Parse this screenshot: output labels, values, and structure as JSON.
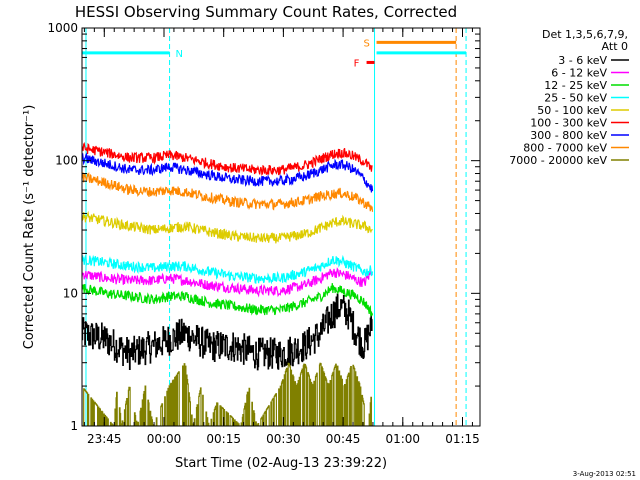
{
  "chart_data": {
    "type": "line",
    "title": "HESSI Observing Summary Count Rates, Corrected",
    "xlabel": "Start Time (02-Aug-13 23:39:22)",
    "ylabel": "Corrected Count Rate (s⁻¹ detector⁻¹)",
    "x_unit": "minutes since 23:39:22",
    "xlim": [
      0,
      100
    ],
    "ylim": [
      1,
      1000
    ],
    "y_scale": "log",
    "x_ticks": [
      {
        "t": 5.6,
        "label": "23:45"
      },
      {
        "t": 20.6,
        "label": "00:00"
      },
      {
        "t": 35.6,
        "label": "00:15"
      },
      {
        "t": 50.6,
        "label": "00:30"
      },
      {
        "t": 65.6,
        "label": "00:45"
      },
      {
        "t": 80.6,
        "label": "01:00"
      },
      {
        "t": 95.6,
        "label": "01:15"
      }
    ],
    "y_ticks": [
      {
        "v": 1,
        "label": "1"
      },
      {
        "v": 10,
        "label": "10"
      },
      {
        "v": 100,
        "label": "100"
      },
      {
        "v": 1000,
        "label": "1000"
      }
    ],
    "legend": {
      "title_lines": [
        "Det 1,3,5,6,7,9,",
        "Att 0"
      ],
      "placement": "right"
    },
    "series": [
      {
        "name": "3 - 6 keV",
        "color": "#000000",
        "x": [
          0,
          6,
          12,
          18,
          22,
          26,
          32,
          38,
          44,
          50,
          56,
          60,
          63,
          65,
          67,
          69,
          71,
          73
        ],
        "y": [
          5,
          4.5,
          3.5,
          4,
          4.5,
          5,
          4,
          4,
          3.5,
          3.5,
          4,
          5,
          7,
          8,
          7,
          5,
          4,
          6
        ]
      },
      {
        "name": "6 - 12 keV",
        "color": "#ff00ff",
        "x": [
          0,
          6,
          12,
          18,
          22,
          26,
          32,
          38,
          44,
          50,
          56,
          60,
          63,
          65,
          67,
          69,
          71,
          73
        ],
        "y": [
          14,
          13,
          12.5,
          12.5,
          13,
          12.5,
          11.5,
          11,
          10.5,
          10.5,
          11.5,
          13,
          14.5,
          14,
          13.5,
          12.5,
          12,
          15
        ]
      },
      {
        "name": "12 - 25 keV",
        "color": "#00dd00",
        "x": [
          0,
          6,
          12,
          18,
          22,
          26,
          32,
          38,
          44,
          50,
          56,
          60,
          63,
          65,
          67,
          69,
          71,
          73
        ],
        "y": [
          11,
          10,
          9.5,
          9,
          9.5,
          9.5,
          8.5,
          8,
          7.5,
          7.5,
          8.5,
          9.5,
          11,
          10.5,
          10,
          9.5,
          8.5,
          7
        ]
      },
      {
        "name": "25 - 50 keV",
        "color": "#00ffff",
        "x": [
          0,
          6,
          12,
          18,
          22,
          26,
          32,
          38,
          44,
          50,
          56,
          60,
          63,
          65,
          67,
          69,
          71,
          73
        ],
        "y": [
          18,
          17,
          16,
          15.5,
          16,
          16,
          14.5,
          13.5,
          13,
          13,
          14.5,
          16,
          18,
          17.5,
          16.5,
          15.5,
          14.5,
          15
        ]
      },
      {
        "name": "50 - 100 keV",
        "color": "#ddcc00",
        "x": [
          0,
          6,
          12,
          18,
          22,
          26,
          32,
          38,
          44,
          50,
          56,
          60,
          63,
          65,
          67,
          69,
          71,
          73
        ],
        "y": [
          38,
          35,
          32,
          30,
          31,
          32,
          29,
          27,
          26,
          26,
          28,
          31,
          34,
          35,
          34,
          33,
          32,
          30
        ]
      },
      {
        "name": "100 - 300 keV",
        "color": "#ff0000",
        "x": [
          0,
          6,
          12,
          18,
          22,
          26,
          32,
          38,
          44,
          50,
          56,
          60,
          63,
          65,
          67,
          69,
          71,
          73
        ],
        "y": [
          125,
          115,
          105,
          105,
          110,
          105,
          95,
          88,
          85,
          85,
          92,
          103,
          112,
          115,
          112,
          105,
          98,
          85
        ]
      },
      {
        "name": "300 - 800 keV",
        "color": "#0000ff",
        "x": [
          0,
          6,
          12,
          18,
          22,
          26,
          32,
          38,
          44,
          50,
          56,
          60,
          63,
          65,
          67,
          69,
          71,
          73
        ],
        "y": [
          105,
          95,
          85,
          85,
          90,
          85,
          78,
          72,
          70,
          70,
          76,
          85,
          92,
          94,
          90,
          82,
          72,
          60
        ]
      },
      {
        "name": "800 - 7000 keV",
        "color": "#ff8800",
        "x": [
          0,
          6,
          12,
          18,
          22,
          26,
          32,
          38,
          44,
          50,
          56,
          60,
          63,
          65,
          67,
          69,
          71,
          73
        ],
        "y": [
          75,
          68,
          60,
          58,
          60,
          58,
          53,
          49,
          47,
          47,
          50,
          54,
          56,
          57,
          55,
          52,
          48,
          43
        ]
      },
      {
        "name": "7000 - 20000 keV",
        "color": "#808000",
        "x": [
          0,
          8,
          9,
          10,
          12,
          14,
          16,
          18,
          22,
          26,
          28,
          30,
          32,
          34,
          40,
          42,
          44,
          50,
          52,
          54,
          56,
          58,
          60,
          62,
          64,
          66,
          68,
          70,
          72,
          73
        ],
        "y": [
          2,
          1,
          2,
          1,
          2,
          1,
          2,
          1,
          2,
          3,
          1,
          2,
          1,
          1.5,
          1,
          2,
          1,
          2,
          3,
          2,
          3,
          2,
          3,
          2,
          3,
          2,
          3,
          2,
          1,
          2
        ]
      }
    ],
    "annotations": {
      "lines": [
        {
          "t": 1,
          "color": "#00ffff",
          "style": "solid"
        },
        {
          "t": 22,
          "color": "#00ffff",
          "style": "dashed"
        },
        {
          "t": 73.5,
          "color": "#00ffff",
          "style": "solid"
        },
        {
          "t": 94,
          "color": "#ff8800",
          "style": "dashed"
        },
        {
          "t": 96.5,
          "color": "#00ffff",
          "style": "dashed"
        }
      ],
      "bars": [
        {
          "x0": 0,
          "x1": 22,
          "y": 650,
          "color": "#00ffff",
          "label": "N"
        },
        {
          "x0": 74,
          "x1": 96.5,
          "y": 650,
          "color": "#00ffff",
          "label": ""
        },
        {
          "x0": 74,
          "x1": 94,
          "y": 780,
          "color": "#ff8800",
          "label": "S"
        },
        {
          "x0": 71.5,
          "x1": 73.5,
          "y": 550,
          "color": "#ff0000",
          "label": "F"
        }
      ]
    },
    "timestamp": "3-Aug-2013 02:51"
  }
}
